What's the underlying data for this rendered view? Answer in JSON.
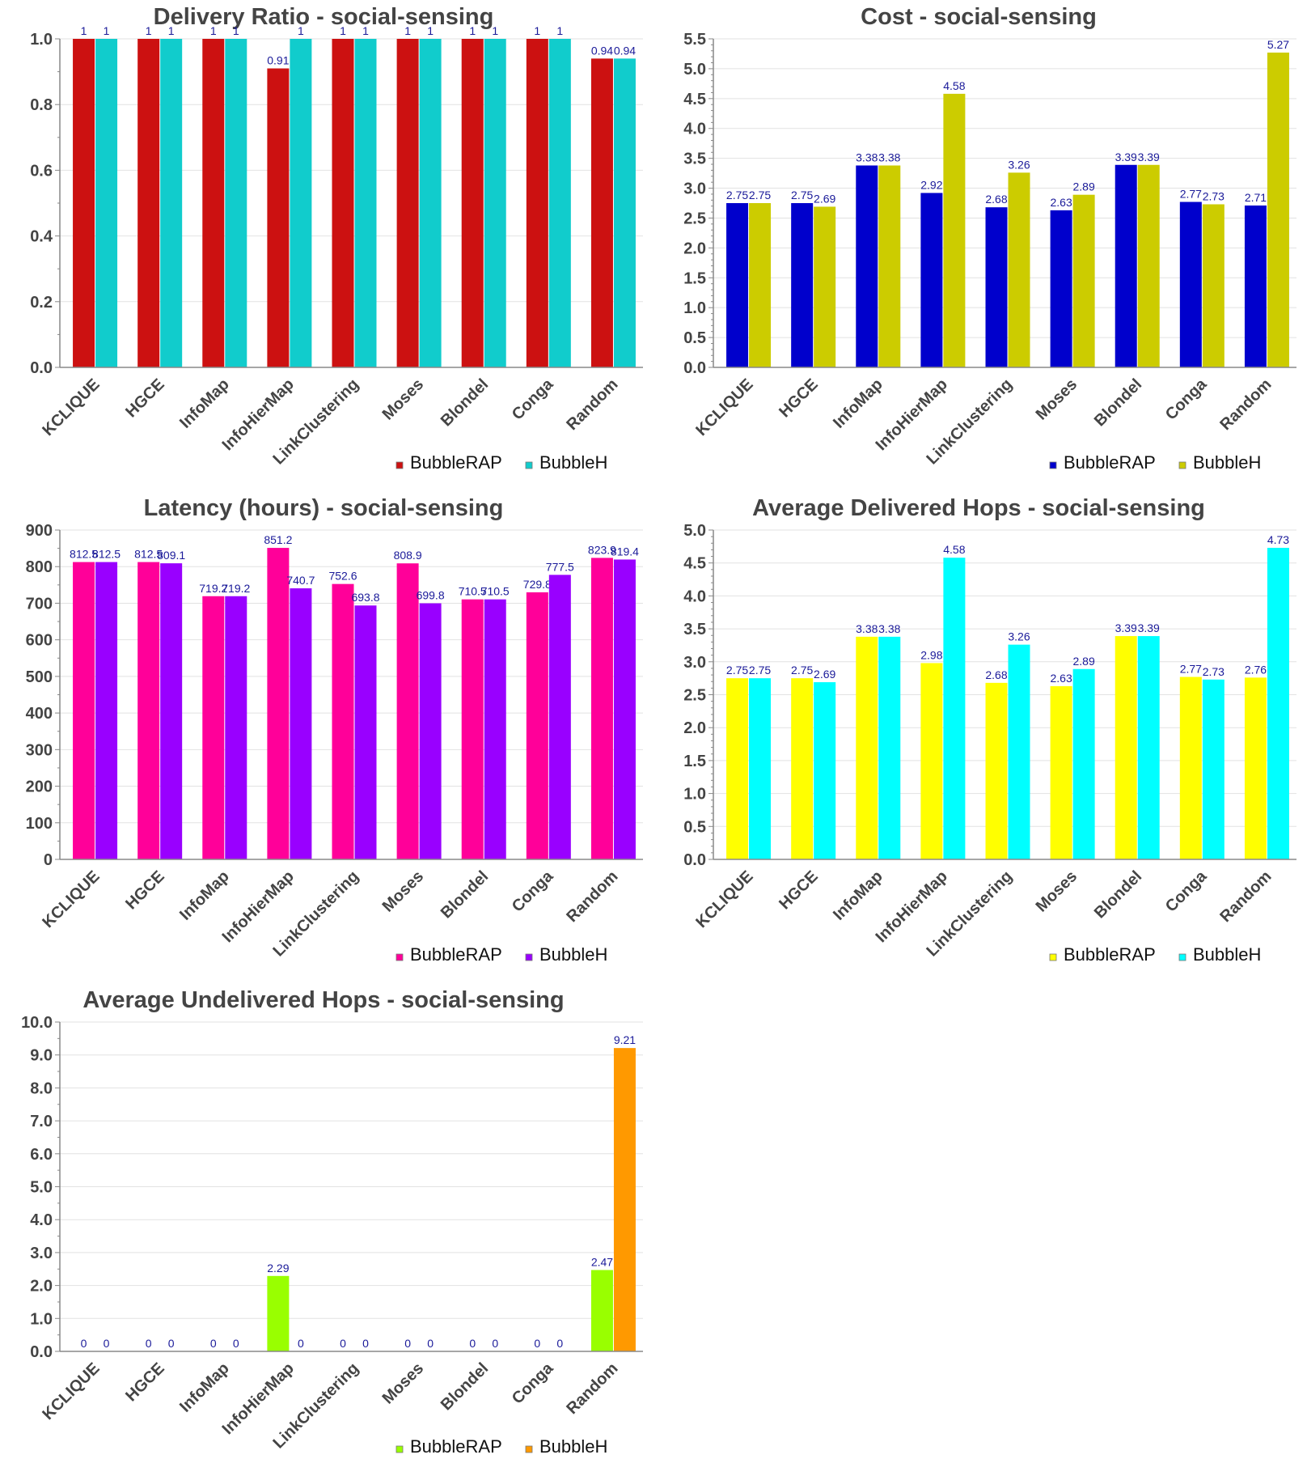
{
  "chart_data": [
    {
      "type": "bar",
      "title": "Delivery Ratio - social-sensing",
      "xlabel": "",
      "ylabel": "",
      "categories": [
        "KCLIQUE",
        "HGCE",
        "InfoMap",
        "InfoHierMap",
        "LinkClustering",
        "Moses",
        "Blondel",
        "Conga",
        "Random"
      ],
      "series": [
        {
          "name": "BubbleRAP",
          "color": "#cc1111",
          "values": [
            1,
            1,
            1,
            0.91,
            1,
            1,
            1,
            1,
            0.94
          ],
          "labels": [
            "1",
            "1",
            "1",
            "0.91",
            "1",
            "1",
            "1",
            "1",
            "0.94"
          ]
        },
        {
          "name": "BubbleH",
          "color": "#11cccc",
          "values": [
            1,
            1,
            1,
            1,
            1,
            1,
            1,
            1,
            0.94
          ],
          "labels": [
            "1",
            "1",
            "1",
            "1",
            "1",
            "1",
            "1",
            "1",
            "0.94"
          ]
        }
      ],
      "ylim": [
        0,
        1.0
      ],
      "yticks": [
        "0.0",
        "0.2",
        "0.4",
        "0.6",
        "0.8",
        "1.0"
      ],
      "ytick_values": [
        0,
        0.2,
        0.4,
        0.6,
        0.8,
        1.0
      ],
      "minor_per_major": 2,
      "grid": true,
      "legend": "bottom-right"
    },
    {
      "type": "bar",
      "title": "Cost - social-sensing",
      "xlabel": "",
      "ylabel": "",
      "categories": [
        "KCLIQUE",
        "HGCE",
        "InfoMap",
        "InfoHierMap",
        "LinkClustering",
        "Moses",
        "Blondel",
        "Conga",
        "Random"
      ],
      "series": [
        {
          "name": "BubbleRAP",
          "color": "#0000cc",
          "values": [
            2.75,
            2.75,
            3.38,
            2.92,
            2.68,
            2.63,
            3.39,
            2.77,
            2.71
          ],
          "labels": [
            "2.75",
            "2.75",
            "3.38",
            "2.92",
            "2.68",
            "2.63",
            "3.39",
            "2.77",
            "2.71"
          ]
        },
        {
          "name": "BubbleH",
          "color": "#cccc00",
          "values": [
            2.75,
            2.69,
            3.38,
            4.58,
            3.26,
            2.89,
            3.39,
            2.73,
            5.27
          ],
          "labels": [
            "2.75",
            "2.69",
            "3.38",
            "4.58",
            "3.26",
            "2.89",
            "3.39",
            "2.73",
            "5.27"
          ]
        }
      ],
      "ylim": [
        0,
        5.5
      ],
      "yticks": [
        "0.0",
        "0.5",
        "1.0",
        "1.5",
        "2.0",
        "2.5",
        "3.0",
        "3.5",
        "4.0",
        "4.5",
        "5.0",
        "5.5"
      ],
      "ytick_values": [
        0,
        0.5,
        1.0,
        1.5,
        2.0,
        2.5,
        3.0,
        3.5,
        4.0,
        4.5,
        5.0,
        5.5
      ],
      "minor_per_major": 5,
      "grid": true,
      "legend": "bottom-right"
    },
    {
      "type": "bar",
      "title": "Latency (hours) - social-sensing",
      "xlabel": "",
      "ylabel": "",
      "categories": [
        "KCLIQUE",
        "HGCE",
        "InfoMap",
        "InfoHierMap",
        "LinkClustering",
        "Moses",
        "Blondel",
        "Conga",
        "Random"
      ],
      "series": [
        {
          "name": "BubbleRAP",
          "color": "#ff0099",
          "values": [
            812.5,
            812.5,
            719.2,
            851.2,
            752.6,
            808.9,
            710.5,
            729.8,
            823.9
          ],
          "labels": [
            "812.5",
            "812.5",
            "719.2",
            "851.2",
            "752.6",
            "808.9",
            "710.5",
            "729.8",
            "823.9"
          ]
        },
        {
          "name": "BubbleH",
          "color": "#9900ff",
          "values": [
            812.5,
            809.1,
            719.2,
            740.7,
            693.8,
            699.8,
            710.5,
            777.5,
            819.4
          ],
          "labels": [
            "812.5",
            "809.1",
            "719.2",
            "740.7",
            "693.8",
            "699.8",
            "710.5",
            "777.5",
            "819.4"
          ]
        }
      ],
      "ylim": [
        0,
        900
      ],
      "yticks": [
        "0",
        "100",
        "200",
        "300",
        "400",
        "500",
        "600",
        "700",
        "800",
        "900"
      ],
      "ytick_values": [
        0,
        100,
        200,
        300,
        400,
        500,
        600,
        700,
        800,
        900
      ],
      "minor_per_major": 2,
      "grid": true,
      "legend": "bottom-right"
    },
    {
      "type": "bar",
      "title": "Average Delivered Hops - social-sensing",
      "xlabel": "",
      "ylabel": "",
      "categories": [
        "KCLIQUE",
        "HGCE",
        "InfoMap",
        "InfoHierMap",
        "LinkClustering",
        "Moses",
        "Blondel",
        "Conga",
        "Random"
      ],
      "series": [
        {
          "name": "BubbleRAP",
          "color": "#ffff00",
          "values": [
            2.75,
            2.75,
            3.38,
            2.98,
            2.68,
            2.63,
            3.39,
            2.77,
            2.76
          ],
          "labels": [
            "2.75",
            "2.75",
            "3.38",
            "2.98",
            "2.68",
            "2.63",
            "3.39",
            "2.77",
            "2.76"
          ]
        },
        {
          "name": "BubbleH",
          "color": "#00ffff",
          "values": [
            2.75,
            2.69,
            3.38,
            4.58,
            3.26,
            2.89,
            3.39,
            2.73,
            4.73
          ],
          "labels": [
            "2.75",
            "2.69",
            "3.38",
            "4.58",
            "3.26",
            "2.89",
            "3.39",
            "2.73",
            "4.73"
          ]
        }
      ],
      "ylim": [
        0,
        5.0
      ],
      "yticks": [
        "0.0",
        "0.5",
        "1.0",
        "1.5",
        "2.0",
        "2.5",
        "3.0",
        "3.5",
        "4.0",
        "4.5",
        "5.0"
      ],
      "ytick_values": [
        0,
        0.5,
        1.0,
        1.5,
        2.0,
        2.5,
        3.0,
        3.5,
        4.0,
        4.5,
        5.0
      ],
      "minor_per_major": 5,
      "grid": true,
      "legend": "bottom-right"
    },
    {
      "type": "bar",
      "title": "Average Undelivered Hops - social-sensing",
      "xlabel": "",
      "ylabel": "",
      "categories": [
        "KCLIQUE",
        "HGCE",
        "InfoMap",
        "InfoHierMap",
        "LinkClustering",
        "Moses",
        "Blondel",
        "Conga",
        "Random"
      ],
      "series": [
        {
          "name": "BubbleRAP",
          "color": "#99ff00",
          "values": [
            0,
            0,
            0,
            2.29,
            0,
            0,
            0,
            0,
            2.47
          ],
          "labels": [
            "0",
            "0",
            "0",
            "2.29",
            "0",
            "0",
            "0",
            "0",
            "2.47"
          ]
        },
        {
          "name": "BubbleH",
          "color": "#ff9900",
          "values": [
            0,
            0,
            0,
            0,
            0,
            0,
            0,
            0,
            9.21
          ],
          "labels": [
            "0",
            "0",
            "0",
            "0",
            "0",
            "0",
            "0",
            "0",
            "9.21"
          ]
        }
      ],
      "ylim": [
        0,
        10.0
      ],
      "yticks": [
        "0.0",
        "1.0",
        "2.0",
        "3.0",
        "4.0",
        "5.0",
        "6.0",
        "7.0",
        "8.0",
        "9.0",
        "10.0"
      ],
      "ytick_values": [
        0,
        1,
        2,
        3,
        4,
        5,
        6,
        7,
        8,
        9,
        10
      ],
      "minor_per_major": 2,
      "grid": true,
      "legend": "bottom-right"
    }
  ]
}
